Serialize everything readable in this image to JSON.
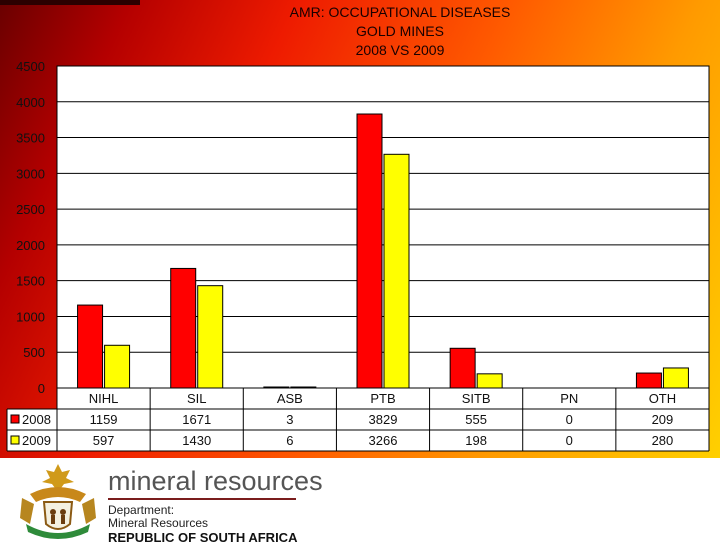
{
  "chart_data": {
    "type": "bar",
    "title_lines": [
      "AMR: OCCUPATIONAL DISEASES",
      "GOLD MINES",
      "2008 VS 2009"
    ],
    "categories": [
      "NIHL",
      "SIL",
      "ASB",
      "PTB",
      "SITB",
      "PN",
      "OTH"
    ],
    "series": [
      {
        "name": "2008",
        "color": "#ff0000",
        "values": [
          1159,
          1671,
          3,
          3829,
          555,
          0,
          209
        ]
      },
      {
        "name": "2009",
        "color": "#ffff00",
        "values": [
          597,
          1430,
          6,
          3266,
          198,
          0,
          280
        ]
      }
    ],
    "value_labels": {
      "2008": [
        "1159",
        "1671",
        "3",
        "3829",
        "555",
        "0",
        "209"
      ],
      "2009": [
        "597",
        "1430",
        "6",
        "3266",
        "198",
        "0",
        "280"
      ]
    },
    "ylim": [
      0,
      4500
    ],
    "y_ticks": [
      "0",
      "500",
      "1000",
      "1500",
      "2000",
      "2500",
      "3000",
      "3500",
      "4000",
      "4500"
    ],
    "grid": true,
    "legend": "data-table"
  },
  "footer": {
    "brand": "mineral resources",
    "department_label": "Department:",
    "department_name": "Mineral Resources",
    "country": "REPUBLIC OF SOUTH AFRICA",
    "emblem_icon": "coat-of-arms-icon"
  }
}
